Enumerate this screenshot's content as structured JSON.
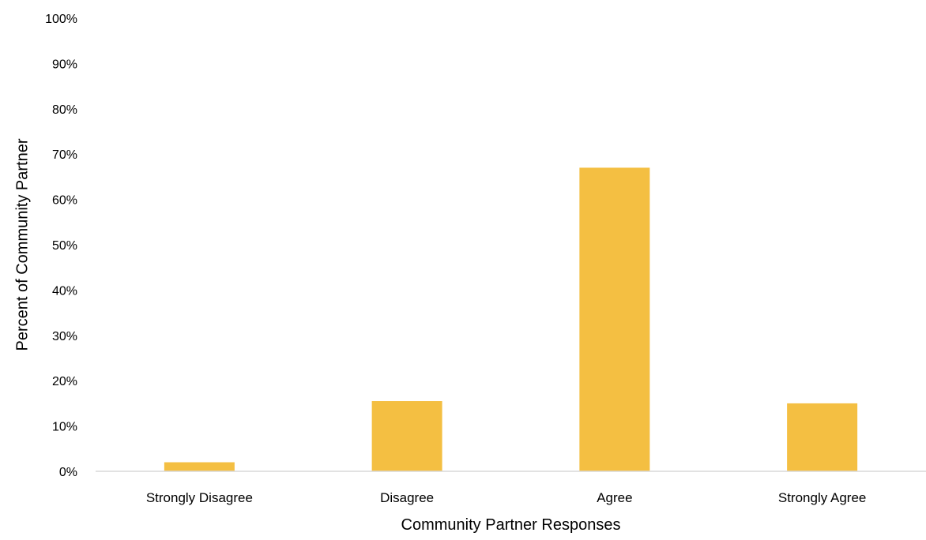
{
  "chart_data": {
    "type": "bar",
    "title": "",
    "xlabel": "Community Partner Responses",
    "ylabel": "Percent of Community Partner",
    "categories": [
      "Strongly Disagree",
      "Disagree",
      "Agree",
      "Strongly Agree"
    ],
    "values": [
      2,
      15.5,
      67,
      15
    ],
    "ylim": [
      0,
      100
    ],
    "yticks": [
      "0%",
      "10%",
      "20%",
      "30%",
      "40%",
      "50%",
      "60%",
      "70%",
      "80%",
      "90%",
      "100%"
    ],
    "grid": false,
    "legend": "none",
    "bar_color": "#F4BF42",
    "axis_color": "#D9D9D9"
  }
}
